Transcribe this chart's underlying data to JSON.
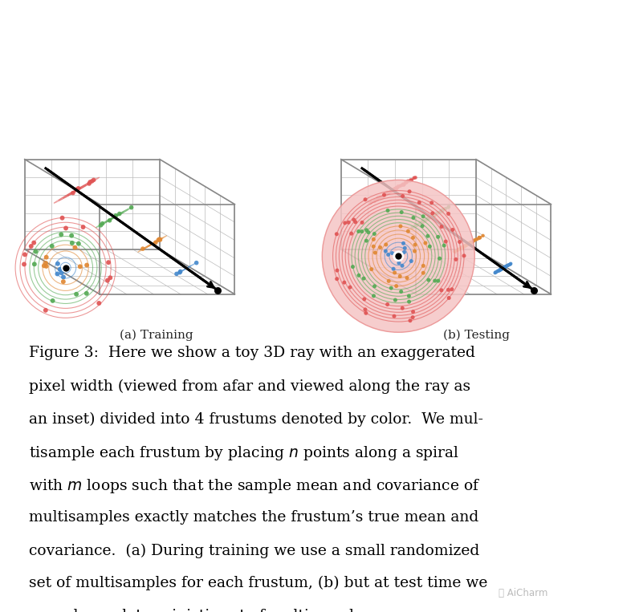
{
  "label_a": "(a) Training",
  "label_b": "(b) Testing",
  "colors": {
    "red": "#e05555",
    "green": "#55aa55",
    "orange": "#e08833",
    "blue": "#4488cc",
    "black": "#111111",
    "bg": "#ffffff",
    "inset_bg_red": "#f5c5c5",
    "grid_bg": "#f0f0f0",
    "pane_color": "#e8e8e8"
  },
  "frustum_colors": [
    "#e05555",
    "#55aa55",
    "#e08833",
    "#4488cc"
  ],
  "watermark": "❤ AiCharm",
  "caption_lines": [
    [
      "bold",
      "Figure 3:"
    ],
    [
      "normal",
      "  Here we show a toy 3D ray with an exaggerated pixel width (viewed from afar and viewed along the ray as an inset) divided into 4 frustums denoted by color. We multisample each frustum by placing "
    ],
    [
      "italic",
      "n"
    ],
    [
      "normal",
      " points along a spiral with "
    ],
    [
      "italic",
      "m"
    ],
    [
      "normal",
      " loops such that the sample mean and covariance of multisamples exactly matches the frustum’s true mean and covariance. (a) During training we use a small randomized set of multisamples for each frustum, (b) but at test time we use a large deterministic set of multisamples."
    ]
  ]
}
